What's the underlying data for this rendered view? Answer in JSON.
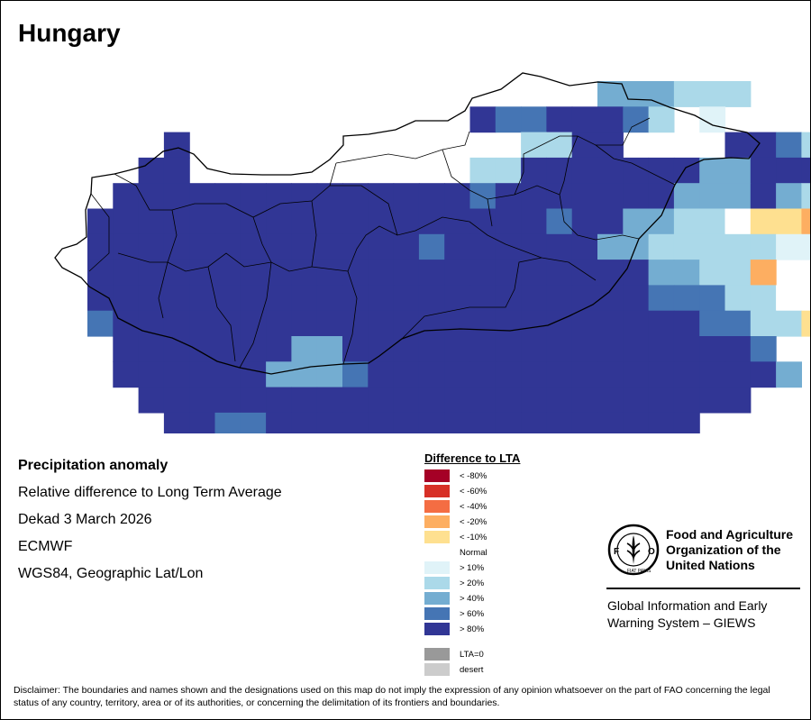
{
  "title": "Hungary",
  "info": {
    "heading": "Precipitation anomaly",
    "line1": "Relative difference to Long Term Average",
    "line2": "Dekad 3 March 2026",
    "line3": "ECMWF",
    "line4": "WGS84, Geographic Lat/Lon"
  },
  "legend": {
    "title": "Difference to LTA",
    "items": [
      {
        "label": "< -80%",
        "color": "#a50026"
      },
      {
        "label": "< -60%",
        "color": "#d73027"
      },
      {
        "label": "< -40%",
        "color": "#f46d43"
      },
      {
        "label": "< -20%",
        "color": "#fdae61"
      },
      {
        "label": "< -10%",
        "color": "#fee090"
      }
    ],
    "normal_label": "Normal",
    "items_pos": [
      {
        "label": "> 10%",
        "color": "#e0f3f8"
      },
      {
        "label": "> 20%",
        "color": "#abd9e9"
      },
      {
        "label": "> 40%",
        "color": "#74add1"
      },
      {
        "label": "> 60%",
        "color": "#4575b4"
      },
      {
        "label": "> 80%",
        "color": "#313695"
      }
    ],
    "extra": [
      {
        "label": "LTA=0",
        "color": "#999999"
      },
      {
        "label": "desert",
        "color": "#cccccc"
      }
    ]
  },
  "org": {
    "logo_text": "FAO",
    "logo_motto": "FIAT PANIS",
    "name_line1": "Food and Agriculture",
    "name_line2": "Organization of the",
    "name_line3": "United Nations",
    "giews_line1": "Global Information and Early",
    "giews_line2": "Warning System – GIEWS"
  },
  "disclaimer": "Disclaimer: The boundaries and names shown and the designations used on this map do not imply the expression of any opinion whatsoever on the part of FAO concerning the legal status of any country, territory, area or of its authorities, or concerning the delimitation of its frontiers and boundaries.",
  "colors": {
    "c0": "#313695",
    "c1": "#4575b4",
    "c2": "#74add1",
    "c3": "#abd9e9",
    "c4": "#e0f3f8",
    "c5": "#ffffff",
    "c6": "#fee090",
    "c7": "#fdae61",
    "c8": "#f46d43"
  }
}
